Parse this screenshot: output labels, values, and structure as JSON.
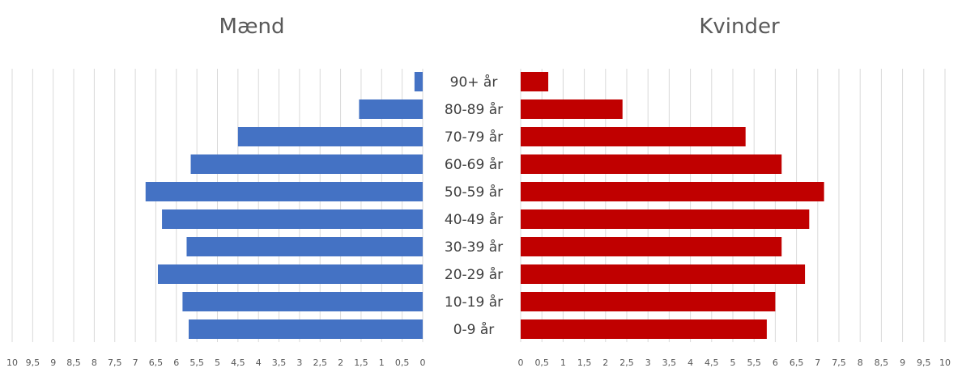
{
  "chart_data": {
    "type": "bar",
    "orientation": "horizontal",
    "layout": "population-pyramid",
    "categories": [
      "90+ år",
      "80-89 år",
      "70-79 år",
      "60-69 år",
      "50-59 år",
      "40-49 år",
      "30-39 år",
      "20-29 år",
      "10-19 år",
      "0-9 år"
    ],
    "series": [
      {
        "name": "Mænd",
        "title": "Mænd",
        "color": "#4472c4",
        "values": [
          0.2,
          1.55,
          4.5,
          5.65,
          6.75,
          6.35,
          5.75,
          6.45,
          5.85,
          5.7
        ]
      },
      {
        "name": "Kvinder",
        "title": "Kvinder",
        "color": "#c00000",
        "values": [
          0.65,
          2.4,
          5.3,
          6.15,
          7.15,
          6.8,
          6.15,
          6.7,
          6.0,
          5.8
        ]
      }
    ],
    "xlim": [
      0,
      10
    ],
    "tick_labels": [
      "0",
      "0,5",
      "1",
      "1,5",
      "2",
      "2,5",
      "3",
      "3,5",
      "4",
      "4,5",
      "5",
      "5,5",
      "6",
      "6,5",
      "7",
      "7,5",
      "8",
      "8,5",
      "9",
      "9,5",
      "10"
    ],
    "grid": true,
    "legend": "none"
  }
}
